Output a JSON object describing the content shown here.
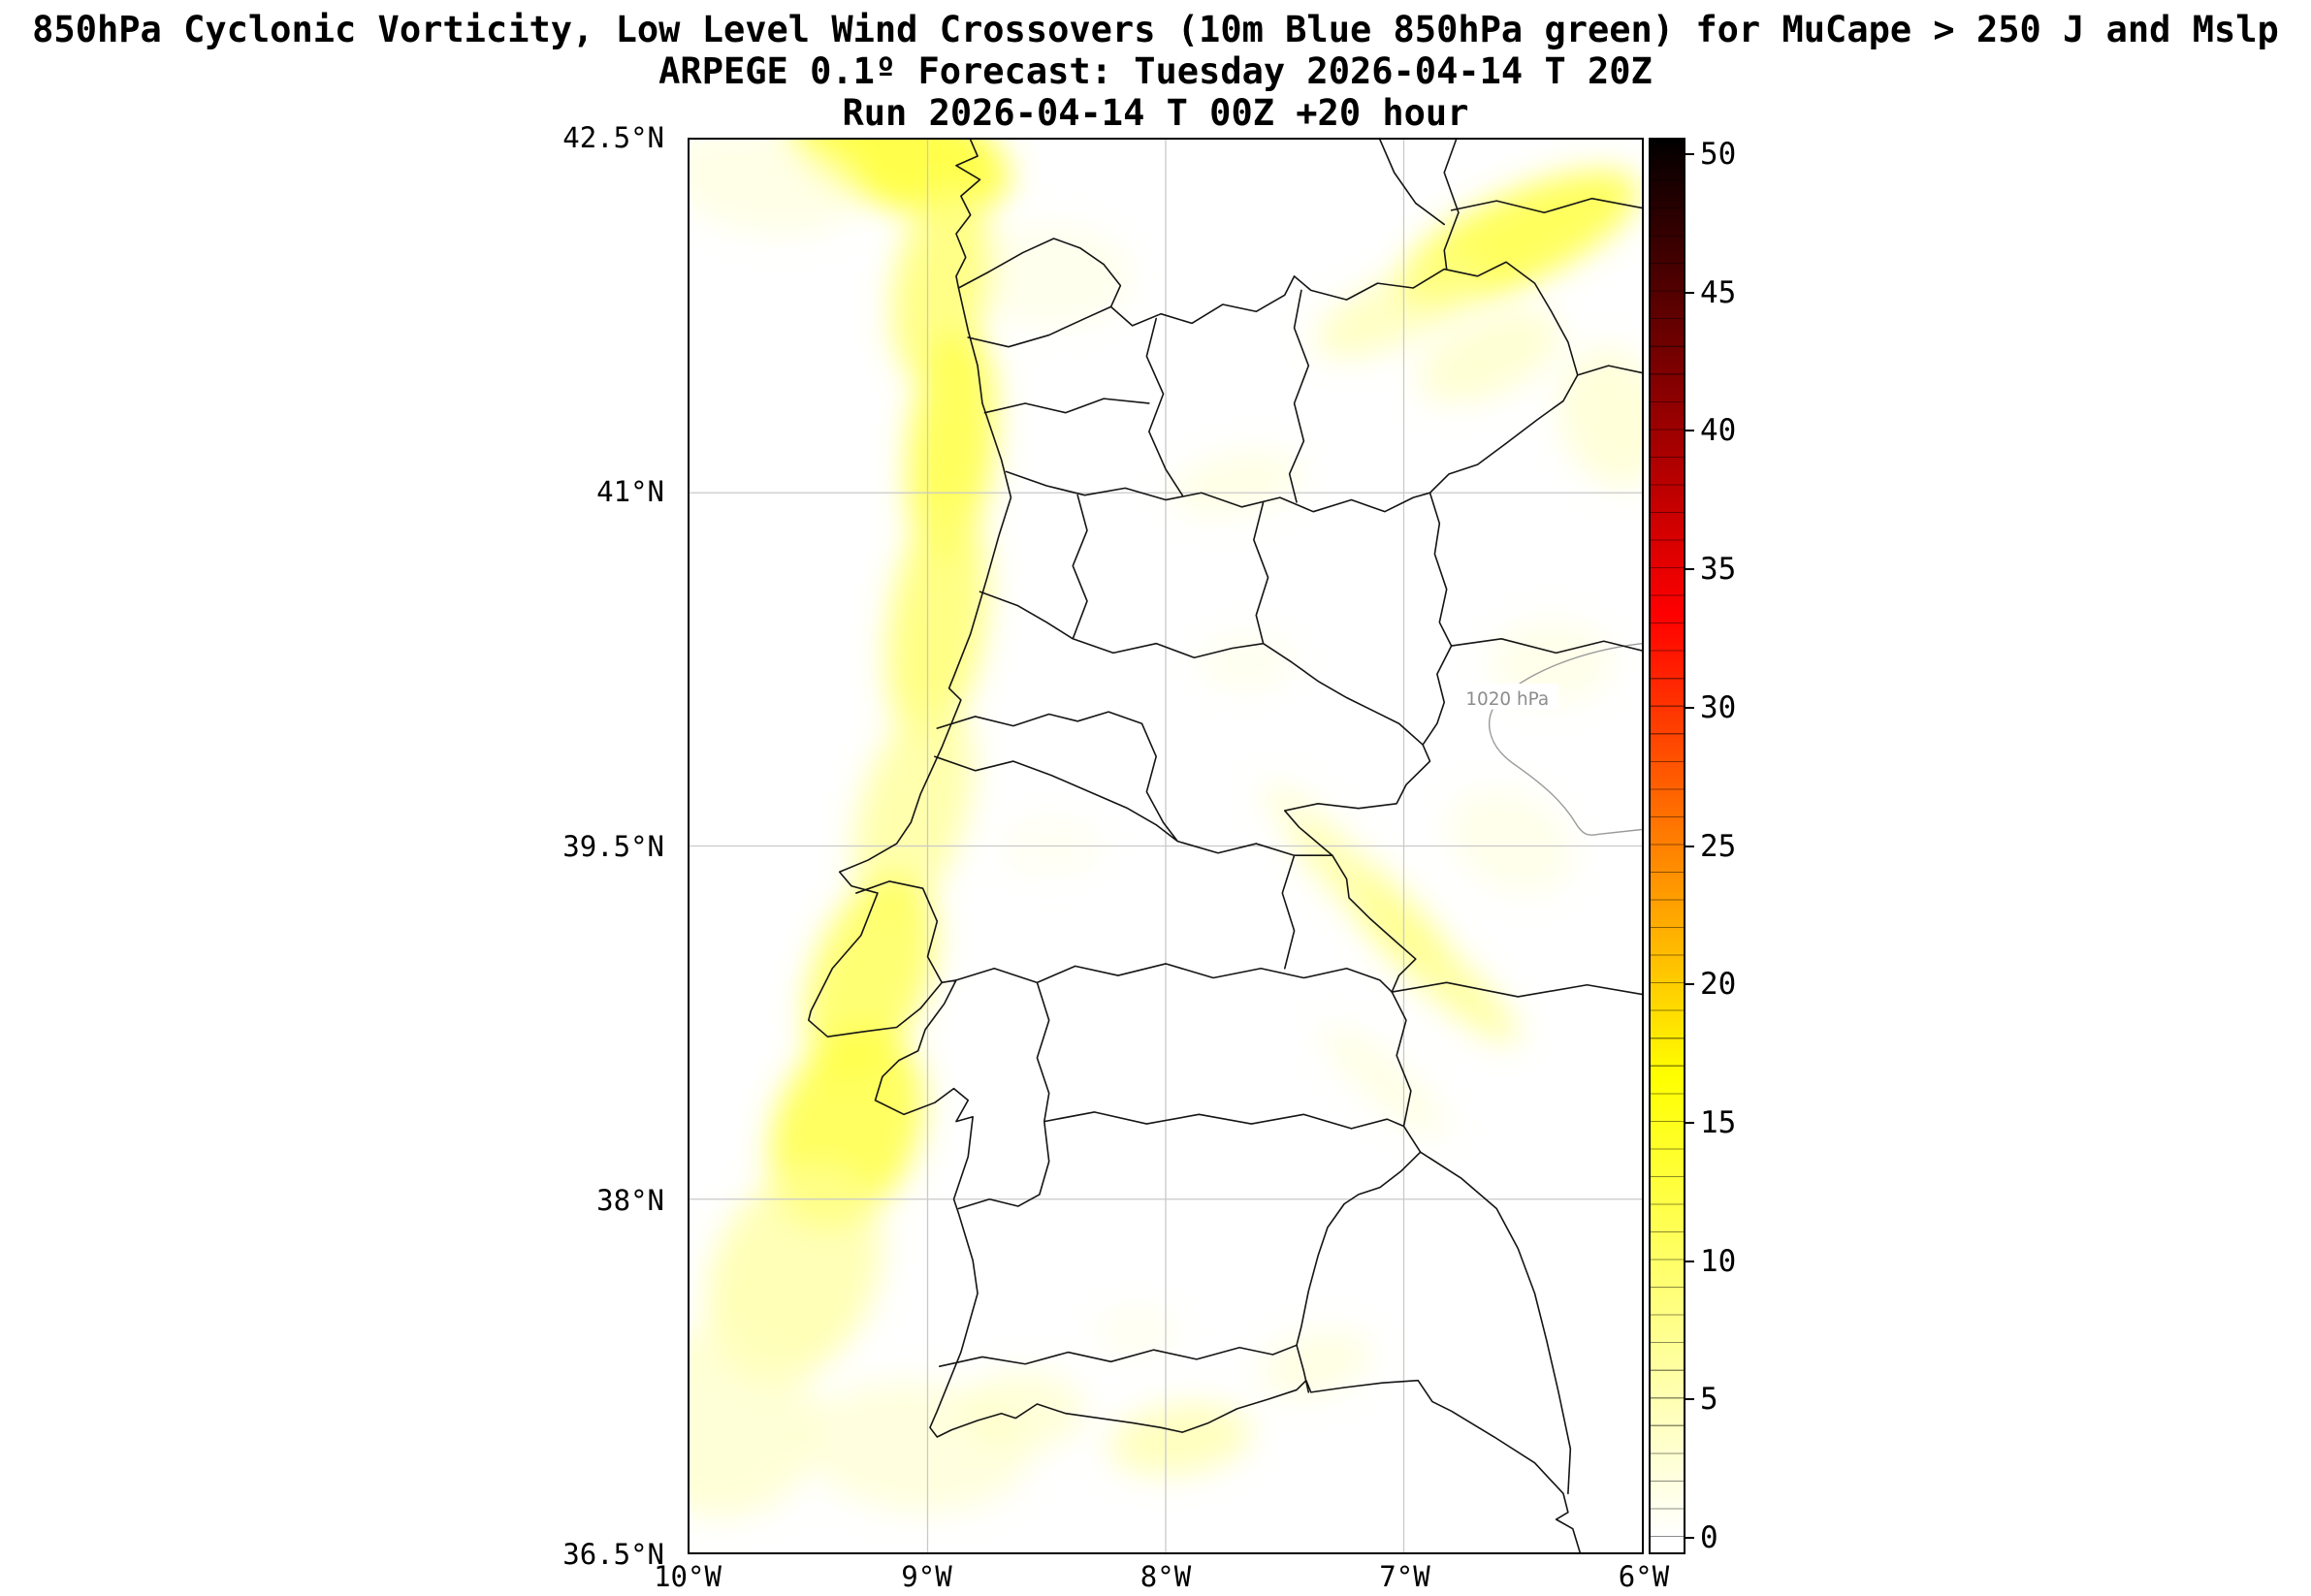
{
  "title": {
    "line1": "850hPa Cyclonic Vorticity, Low Level Wind Crossovers (10m Blue 850hPa green) for MuCape > 250 J and Mslp",
    "line2": "ARPEGE 0.1º Forecast: Tuesday 2026-04-14 T 20Z",
    "line3": "Run 2026-04-14 T 00Z +20 hour"
  },
  "axes": {
    "lat_range": [
      36.5,
      42.5
    ],
    "lon_range": [
      -10,
      -6
    ],
    "lat_ticks": [
      {
        "value": 42.5,
        "label": "42.5°N"
      },
      {
        "value": 41,
        "label": "41°N"
      },
      {
        "value": 39.5,
        "label": "39.5°N"
      },
      {
        "value": 38,
        "label": "38°N"
      },
      {
        "value": 36.5,
        "label": "36.5°N"
      }
    ],
    "lon_ticks": [
      {
        "value": -10,
        "label": "10°W"
      },
      {
        "value": -9,
        "label": "9°W"
      },
      {
        "value": -8,
        "label": "8°W"
      },
      {
        "value": -7,
        "label": "7°W"
      },
      {
        "value": -6,
        "label": "6°W"
      }
    ]
  },
  "map": {
    "contour_label": "1020 hPa"
  },
  "colorbar": {
    "min": 0,
    "max": 50,
    "display_min": -0.6,
    "display_max": 50.6,
    "ticks": [
      0,
      5,
      10,
      15,
      20,
      25,
      30,
      35,
      40,
      45,
      50
    ],
    "colors": {
      "low": "#ffffff",
      "mid_yellow": "#ffff00",
      "mid_red": "#ff0000",
      "high": "#000000"
    }
  },
  "chart_data": {
    "type": "heatmap",
    "subtype": "filled-contour meteorological map over western Iberia (Portugal)",
    "title": "850hPa Cyclonic Vorticity, Low Level Wind Crossovers (10m Blue 850hPa green) for MuCape > 250 J and Mslp",
    "subtitle": "ARPEGE 0.1º Forecast: Tuesday 2026-04-14 T 20Z",
    "run_info": "Run 2026-04-14 T 00Z +20 hour",
    "model": "ARPEGE 0.1º",
    "valid_time": "Tuesday 2026-04-14 T 20Z",
    "run_time": "2026-04-14 T 00Z",
    "forecast_hour": "+20 hour",
    "extent": {
      "lon_min": -10,
      "lon_max": -6,
      "lat_min": 36.5,
      "lat_max": 42.5
    },
    "x_tick_labels": [
      "10°W",
      "9°W",
      "8°W",
      "7°W",
      "6°W"
    ],
    "y_tick_labels": [
      "42.5°N",
      "41°N",
      "39.5°N",
      "38°N",
      "36.5°N"
    ],
    "grid": true,
    "legend_position": "right-colorbar",
    "colorbar": {
      "ticks": [
        0,
        5,
        10,
        15,
        20,
        25,
        30,
        35,
        40,
        45,
        50
      ],
      "range": [
        0,
        50
      ],
      "level_step": 1,
      "colormap_stops": [
        "#ffffff",
        "#ffff00",
        "#ff0000",
        "#000000"
      ]
    },
    "mslp_contour": {
      "value_hpa": 1020,
      "label": "1020 hPa",
      "label_location": {
        "lon": -6.6,
        "lat": 40.1
      }
    },
    "vorticity_regions": [
      {
        "area": "broad band paralleling the Atlantic coast from 42.5N 9W down past Lisbon toward 36.8N 9.9W",
        "approx_peak": 12
      },
      {
        "area": "bright patch over the Lisbon–Setubal peninsula",
        "approx_peak": 13
      },
      {
        "area": "northeast band near 6.3W 42.2N",
        "approx_peak": 12
      },
      {
        "area": "SW–NE oriented streaks near 7W between 38.4N and 39.6N",
        "approx_peak": 7
      },
      {
        "area": "patches along the Algarve / Gulf of Cadiz coast near 37N",
        "approx_peak": 6
      },
      {
        "area": "faint patch east of Vila Real near 7.7W 41.6N",
        "approx_peak": 4
      }
    ]
  }
}
